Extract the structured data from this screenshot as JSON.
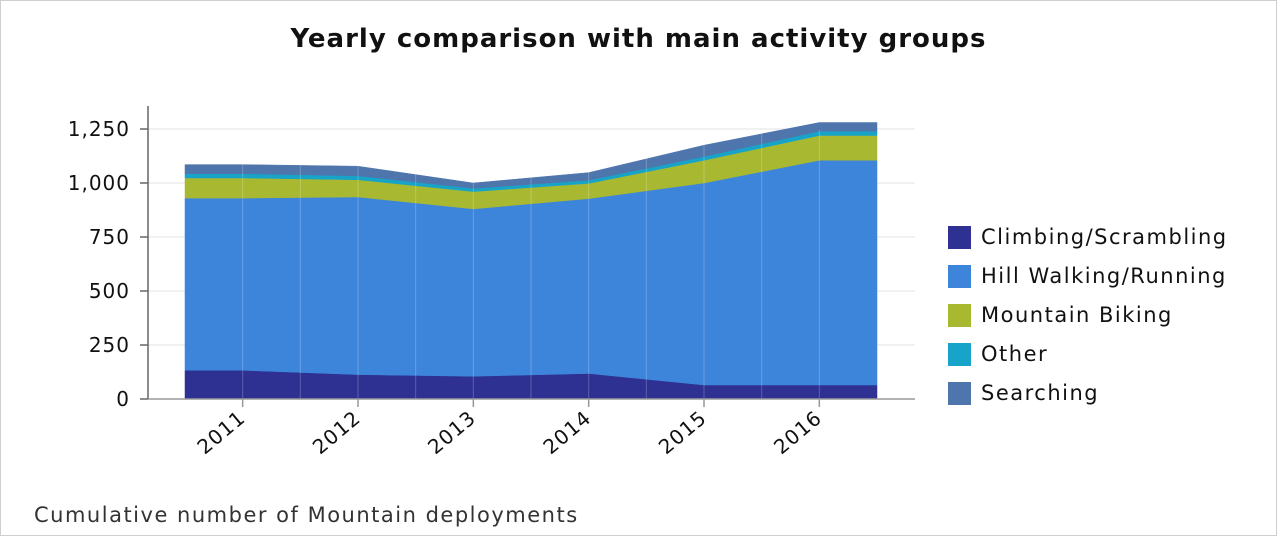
{
  "chart_data": {
    "type": "area",
    "stacked": true,
    "title": "Yearly comparison with main activity groups",
    "caption": "Cumulative number of Mountain deployments",
    "categories": [
      "2011",
      "2012",
      "2013",
      "2014",
      "2015",
      "2016"
    ],
    "x_start": 2010.5,
    "x_end": 2016.5,
    "ylim": [
      0,
      1250
    ],
    "yticks": [
      "0",
      "250",
      "500",
      "750",
      "1,000",
      "1,250"
    ],
    "ytick_values": [
      0,
      250,
      500,
      750,
      1000,
      1250
    ],
    "legend_position": "right",
    "grid": true,
    "series": [
      {
        "name": "Climbing/Scrambling",
        "color": "#2e3192",
        "values": [
          133,
          113,
          105,
          118,
          65,
          65
        ]
      },
      {
        "name": "Hill Walking/Running",
        "color": "#3d85db",
        "values": [
          797,
          822,
          775,
          810,
          935,
          1040
        ]
      },
      {
        "name": "Mountain Biking",
        "color": "#a8b830",
        "values": [
          93,
          80,
          80,
          70,
          105,
          115
        ]
      },
      {
        "name": "Other",
        "color": "#18a3c9",
        "values": [
          20,
          18,
          15,
          15,
          17,
          20
        ]
      },
      {
        "name": "Searching",
        "color": "#4e76ad",
        "values": [
          42,
          45,
          25,
          35,
          53,
          40
        ]
      }
    ]
  }
}
